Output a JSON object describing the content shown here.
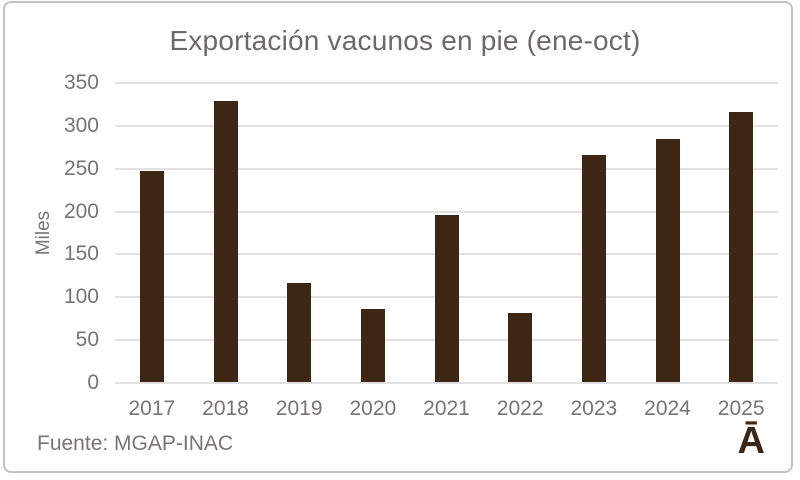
{
  "chart_data": {
    "type": "bar",
    "title": "Exportación vacunos en pie (ene-oct)",
    "ylabel": "Miles",
    "xlabel": "",
    "categories": [
      "2017",
      "2018",
      "2019",
      "2020",
      "2021",
      "2022",
      "2023",
      "2024",
      "2025"
    ],
    "values": [
      246,
      328,
      116,
      85,
      195,
      80,
      265,
      283,
      315
    ],
    "ylim": [
      0,
      350
    ],
    "ytick_step": 50,
    "yticks": [
      0,
      50,
      100,
      150,
      200,
      250,
      300,
      350
    ],
    "grid": "horizontal",
    "legend": "none",
    "bar_color": "#3d2714",
    "text_color": "#7a7374",
    "gridline_color": "#e2e0e0"
  },
  "footer": {
    "source": "Fuente: MGAP-INAC",
    "logo": "Ā"
  }
}
